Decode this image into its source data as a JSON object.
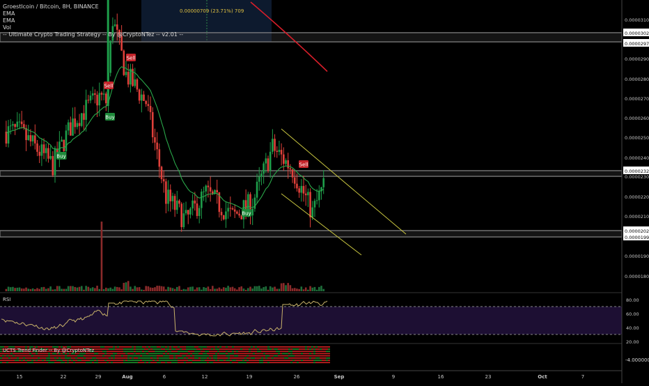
{
  "header": {
    "symbol": "Groestlcoin / Bitcoin, 8H, BINANCE",
    "indicators": [
      "EMA",
      "EMA",
      "Vol",
      "-- Ultimate Crypto Trading Strategy -- By @CryptoNTez -- v2.01 --"
    ]
  },
  "measure_label": "0.00000709 (23.71%) 709",
  "price_axis": {
    "ticks": [
      "0.00003100",
      "0.00003025",
      "0.00002973",
      "0.00002900",
      "0.00002800",
      "0.00002700",
      "0.00002600",
      "0.00002500",
      "0.00002400",
      "0.00002325",
      "0.00002300",
      "0.00002200",
      "0.00002100",
      "0.00002021",
      "0.00001993",
      "0.00001900",
      "0.00001800"
    ],
    "highlighted": [
      "0.00003025",
      "0.00002973",
      "0.00002325",
      "0.00002021",
      "0.00001993"
    ]
  },
  "time_axis": {
    "labels": [
      "15",
      "22",
      "29",
      "Aug",
      "6",
      "12",
      "19",
      "26",
      "Sep",
      "9",
      "16",
      "23",
      "Oct",
      "7"
    ],
    "bold": [
      "Aug",
      "Sep",
      "Oct"
    ]
  },
  "signals": [
    {
      "label": "Buy",
      "type": "buy"
    },
    {
      "label": "Buy",
      "type": "buy"
    },
    {
      "label": "Sell",
      "type": "sell"
    },
    {
      "label": "Sell",
      "type": "sell"
    },
    {
      "label": "Buy",
      "type": "buy"
    },
    {
      "label": "Sell",
      "type": "sell"
    }
  ],
  "rsi": {
    "title": "RSI",
    "ticks": [
      "80.00",
      "60.00",
      "40.00",
      "20.00"
    ]
  },
  "trend_finder": {
    "title": "UCTS Trend Finder -- By @CryptoNTez",
    "tick": "-4.0000000"
  },
  "colors": {
    "up": "#1e9e4a",
    "down": "#e0403a",
    "ema_fast": "#2aa84a",
    "ema_slow": "#d81e2a",
    "channel": "#c9c640",
    "rsi_line": "#c9b36a",
    "rsi_bg": "#1d0f33",
    "zone": "#6a6a6a"
  },
  "chart_data": {
    "type": "candlestick",
    "pair": "Groestlcoin / Bitcoin",
    "timeframe": "8H",
    "exchange": "BINANCE",
    "ylim": [
      1.75e-05,
      3.15e-05
    ],
    "close_path": [
      {
        "date": "Jul 15",
        "close": 2.53e-05
      },
      {
        "date": "Jul 20",
        "close": 2.36e-05
      },
      {
        "date": "Jul 23",
        "close": 2.58e-05
      },
      {
        "date": "Jul 27",
        "close": 2.71e-05
      },
      {
        "date": "Jul 28",
        "close": 2.68e-05
      },
      {
        "date": "Jul 29",
        "close": 3.1e-05
      },
      {
        "date": "Jul 31",
        "close": 2.82e-05
      },
      {
        "date": "Aug 3",
        "close": 2.68e-05
      },
      {
        "date": "Aug 6",
        "close": 2.2e-05
      },
      {
        "date": "Aug 9",
        "close": 2.08e-05
      },
      {
        "date": "Aug 12",
        "close": 2.22e-05
      },
      {
        "date": "Aug 16",
        "close": 2.1e-05
      },
      {
        "date": "Aug 19",
        "close": 2.17e-05
      },
      {
        "date": "Aug 22",
        "close": 2.45e-05
      },
      {
        "date": "Aug 25",
        "close": 2.34e-05
      },
      {
        "date": "Aug 28",
        "close": 2.12e-05
      },
      {
        "date": "Aug 30",
        "close": 2.28e-05
      }
    ],
    "channel": {
      "upper": [
        [
          "Aug 22",
          2.53e-05
        ],
        [
          "Sep 12",
          2.02e-05
        ]
      ],
      "lower": [
        [
          "Aug 22",
          2.2e-05
        ],
        [
          "Sep 11",
          1.93e-05
        ]
      ]
    }
  }
}
